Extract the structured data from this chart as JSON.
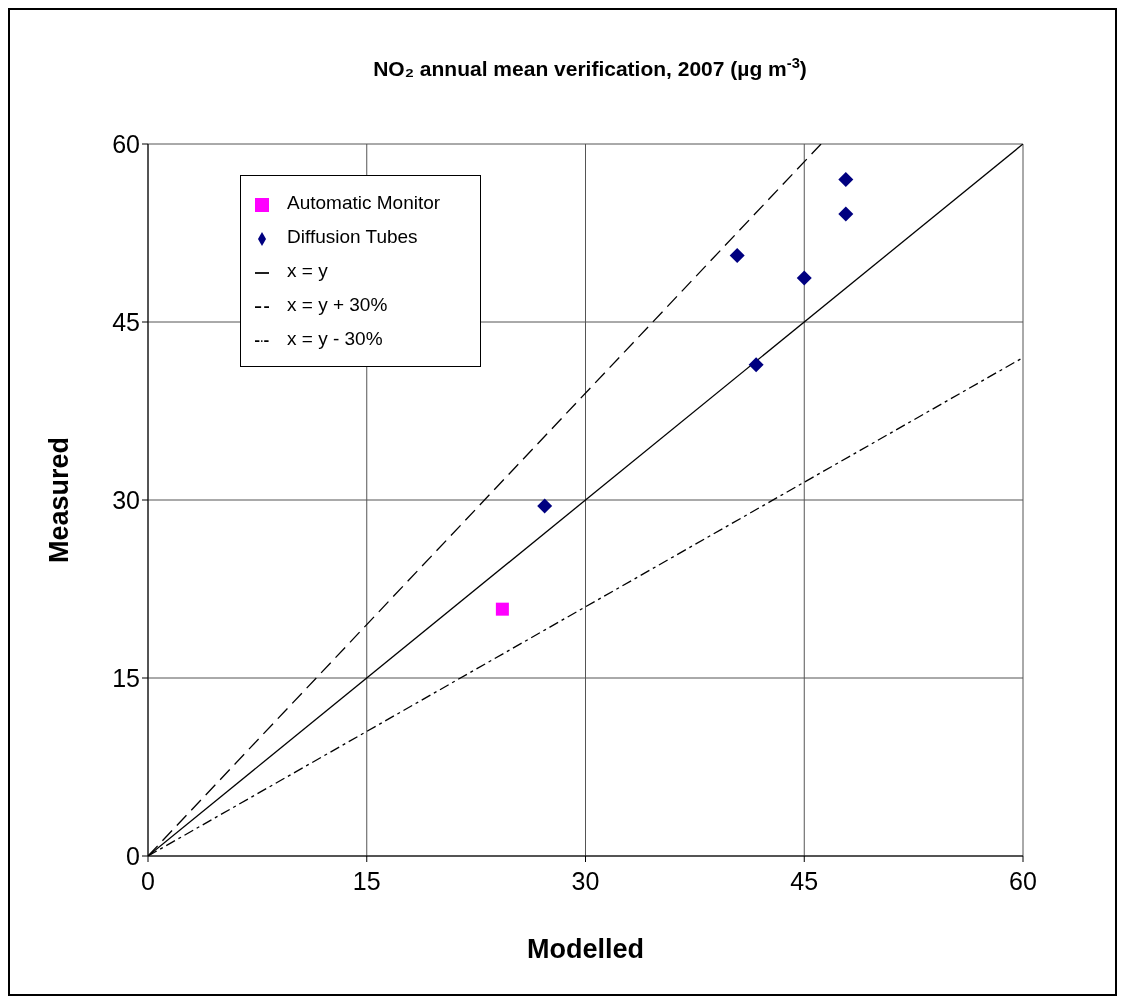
{
  "chart_data": {
    "type": "scatter",
    "title": "NO₂ annual mean verification, 2007 (µg m$^{-3}$)",
    "xlabel": "Modelled",
    "ylabel": "Measured",
    "xlim": [
      0,
      60
    ],
    "xticks": [
      0,
      15,
      30,
      45,
      60
    ],
    "ylim": [
      0,
      60
    ],
    "yticks": [
      0,
      15,
      30,
      45,
      60
    ],
    "grid": true,
    "legend": "top left",
    "series": [
      {
        "name": "Automatic Monitor",
        "color": "#ff00ff",
        "marker": "square",
        "x": [
          24.3
        ],
        "values": [
          20.8
        ]
      },
      {
        "name": "Diffusion Tubes",
        "color": "#000080",
        "marker": "diamond",
        "x": [
          27.2,
          40.4,
          41.7,
          45.0,
          47.85,
          47.85
        ],
        "values": [
          29.5,
          50.6,
          41.4,
          48.7,
          54.1,
          57.0
        ]
      },
      {
        "name": "x = y",
        "type": "line",
        "color": "#000000",
        "marker": "none",
        "line_style": "solid",
        "x": [
          0,
          60
        ],
        "values": [
          0,
          60
        ]
      },
      {
        "name": "x = y + 30%",
        "type": "line",
        "color": "#000000",
        "marker": "none",
        "line_style": "dashed",
        "x": [
          0,
          46.15
        ],
        "values": [
          0,
          60
        ]
      },
      {
        "name": "x = y - 30%",
        "type": "line",
        "color": "#000000",
        "marker": "none",
        "line_style": "dotted",
        "x": [
          0,
          60
        ],
        "values": [
          0,
          42
        ]
      }
    ]
  }
}
